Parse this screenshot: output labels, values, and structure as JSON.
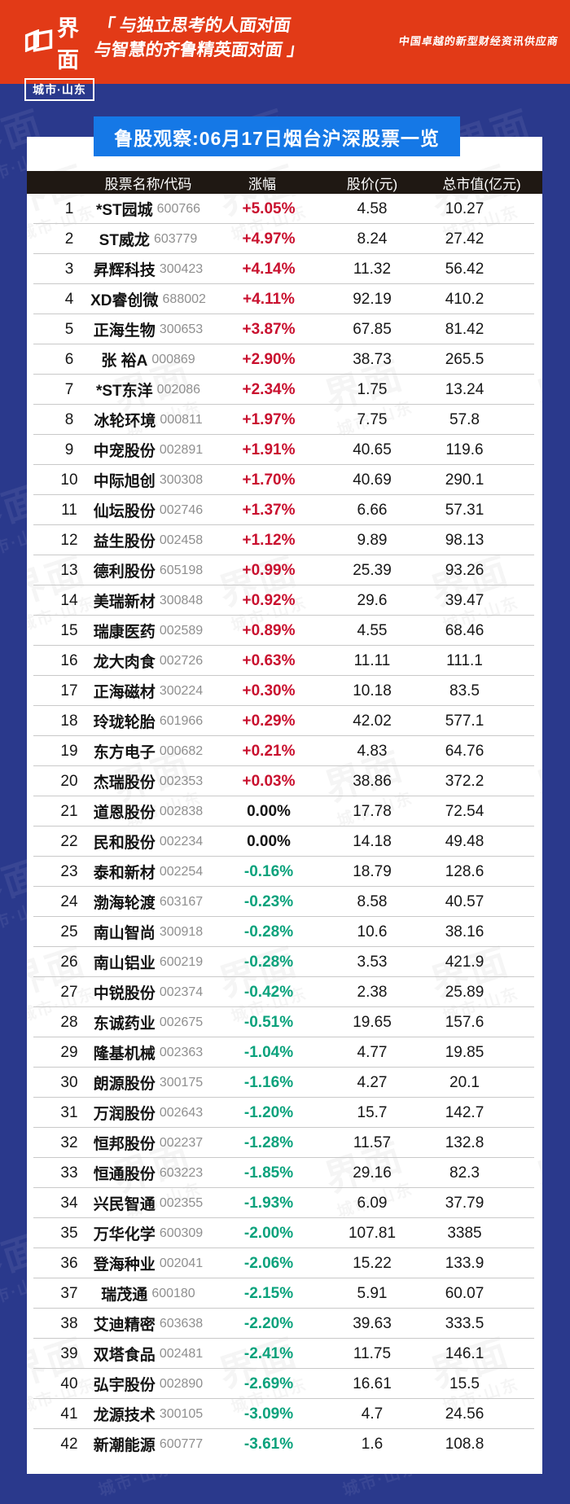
{
  "header": {
    "logo": {
      "brand": "界面",
      "sub": "城市·山东"
    },
    "tagline_line1": "「 与独立思考的人面对面",
    "tagline_line2": "与智慧的齐鲁精英面对面 」",
    "slogan": "中国卓越的新型财经资讯供应商"
  },
  "banner": {
    "title": "鲁股观察:06月17日烟台沪深股票一览"
  },
  "watermark": {
    "brand": "界面",
    "sub": "城市·山东"
  },
  "colors": {
    "masthead_bg": "#e23a17",
    "page_bg": "#2a398c",
    "banner_bg": "#1578e6",
    "table_header_bg": "#1f1813",
    "up": "#c9102e",
    "down": "#0aa27c",
    "flat": "#141414"
  },
  "chart_data": {
    "type": "table",
    "title": "鲁股观察:06月17日烟台沪深股票一览",
    "columns": [
      "股票名称/代码",
      "涨幅",
      "股价(元)",
      "总市值(亿元)"
    ],
    "rows": [
      {
        "rank": 1,
        "name": "*ST园城",
        "code": "600766",
        "change": "+5.05%",
        "price": "4.58",
        "mcap": "10.27",
        "dir": "up"
      },
      {
        "rank": 2,
        "name": "ST威龙",
        "code": "603779",
        "change": "+4.97%",
        "price": "8.24",
        "mcap": "27.42",
        "dir": "up"
      },
      {
        "rank": 3,
        "name": "昇辉科技",
        "code": "300423",
        "change": "+4.14%",
        "price": "11.32",
        "mcap": "56.42",
        "dir": "up"
      },
      {
        "rank": 4,
        "name": "XD睿创微",
        "code": "688002",
        "change": "+4.11%",
        "price": "92.19",
        "mcap": "410.2",
        "dir": "up"
      },
      {
        "rank": 5,
        "name": "正海生物",
        "code": "300653",
        "change": "+3.87%",
        "price": "67.85",
        "mcap": "81.42",
        "dir": "up"
      },
      {
        "rank": 6,
        "name": "张 裕A",
        "code": "000869",
        "change": "+2.90%",
        "price": "38.73",
        "mcap": "265.5",
        "dir": "up"
      },
      {
        "rank": 7,
        "name": "*ST东洋",
        "code": "002086",
        "change": "+2.34%",
        "price": "1.75",
        "mcap": "13.24",
        "dir": "up"
      },
      {
        "rank": 8,
        "name": "冰轮环境",
        "code": "000811",
        "change": "+1.97%",
        "price": "7.75",
        "mcap": "57.8",
        "dir": "up"
      },
      {
        "rank": 9,
        "name": "中宠股份",
        "code": "002891",
        "change": "+1.91%",
        "price": "40.65",
        "mcap": "119.6",
        "dir": "up"
      },
      {
        "rank": 10,
        "name": "中际旭创",
        "code": "300308",
        "change": "+1.70%",
        "price": "40.69",
        "mcap": "290.1",
        "dir": "up"
      },
      {
        "rank": 11,
        "name": "仙坛股份",
        "code": "002746",
        "change": "+1.37%",
        "price": "6.66",
        "mcap": "57.31",
        "dir": "up"
      },
      {
        "rank": 12,
        "name": "益生股份",
        "code": "002458",
        "change": "+1.12%",
        "price": "9.89",
        "mcap": "98.13",
        "dir": "up"
      },
      {
        "rank": 13,
        "name": "德利股份",
        "code": "605198",
        "change": "+0.99%",
        "price": "25.39",
        "mcap": "93.26",
        "dir": "up"
      },
      {
        "rank": 14,
        "name": "美瑞新材",
        "code": "300848",
        "change": "+0.92%",
        "price": "29.6",
        "mcap": "39.47",
        "dir": "up"
      },
      {
        "rank": 15,
        "name": "瑞康医药",
        "code": "002589",
        "change": "+0.89%",
        "price": "4.55",
        "mcap": "68.46",
        "dir": "up"
      },
      {
        "rank": 16,
        "name": "龙大肉食",
        "code": "002726",
        "change": "+0.63%",
        "price": "11.11",
        "mcap": "111.1",
        "dir": "up"
      },
      {
        "rank": 17,
        "name": "正海磁材",
        "code": "300224",
        "change": "+0.30%",
        "price": "10.18",
        "mcap": "83.5",
        "dir": "up"
      },
      {
        "rank": 18,
        "name": "玲珑轮胎",
        "code": "601966",
        "change": "+0.29%",
        "price": "42.02",
        "mcap": "577.1",
        "dir": "up"
      },
      {
        "rank": 19,
        "name": "东方电子",
        "code": "000682",
        "change": "+0.21%",
        "price": "4.83",
        "mcap": "64.76",
        "dir": "up"
      },
      {
        "rank": 20,
        "name": "杰瑞股份",
        "code": "002353",
        "change": "+0.03%",
        "price": "38.86",
        "mcap": "372.2",
        "dir": "up"
      },
      {
        "rank": 21,
        "name": "道恩股份",
        "code": "002838",
        "change": "0.00%",
        "price": "17.78",
        "mcap": "72.54",
        "dir": "flat"
      },
      {
        "rank": 22,
        "name": "民和股份",
        "code": "002234",
        "change": "0.00%",
        "price": "14.18",
        "mcap": "49.48",
        "dir": "flat"
      },
      {
        "rank": 23,
        "name": "泰和新材",
        "code": "002254",
        "change": "-0.16%",
        "price": "18.79",
        "mcap": "128.6",
        "dir": "down"
      },
      {
        "rank": 24,
        "name": "渤海轮渡",
        "code": "603167",
        "change": "-0.23%",
        "price": "8.58",
        "mcap": "40.57",
        "dir": "down"
      },
      {
        "rank": 25,
        "name": "南山智尚",
        "code": "300918",
        "change": "-0.28%",
        "price": "10.6",
        "mcap": "38.16",
        "dir": "down"
      },
      {
        "rank": 26,
        "name": "南山铝业",
        "code": "600219",
        "change": "-0.28%",
        "price": "3.53",
        "mcap": "421.9",
        "dir": "down"
      },
      {
        "rank": 27,
        "name": "中锐股份",
        "code": "002374",
        "change": "-0.42%",
        "price": "2.38",
        "mcap": "25.89",
        "dir": "down"
      },
      {
        "rank": 28,
        "name": "东诚药业",
        "code": "002675",
        "change": "-0.51%",
        "price": "19.65",
        "mcap": "157.6",
        "dir": "down"
      },
      {
        "rank": 29,
        "name": "隆基机械",
        "code": "002363",
        "change": "-1.04%",
        "price": "4.77",
        "mcap": "19.85",
        "dir": "down"
      },
      {
        "rank": 30,
        "name": "朗源股份",
        "code": "300175",
        "change": "-1.16%",
        "price": "4.27",
        "mcap": "20.1",
        "dir": "down"
      },
      {
        "rank": 31,
        "name": "万润股份",
        "code": "002643",
        "change": "-1.20%",
        "price": "15.7",
        "mcap": "142.7",
        "dir": "down"
      },
      {
        "rank": 32,
        "name": "恒邦股份",
        "code": "002237",
        "change": "-1.28%",
        "price": "11.57",
        "mcap": "132.8",
        "dir": "down"
      },
      {
        "rank": 33,
        "name": "恒通股份",
        "code": "603223",
        "change": "-1.85%",
        "price": "29.16",
        "mcap": "82.3",
        "dir": "down"
      },
      {
        "rank": 34,
        "name": "兴民智通",
        "code": "002355",
        "change": "-1.93%",
        "price": "6.09",
        "mcap": "37.79",
        "dir": "down"
      },
      {
        "rank": 35,
        "name": "万华化学",
        "code": "600309",
        "change": "-2.00%",
        "price": "107.81",
        "mcap": "3385",
        "dir": "down"
      },
      {
        "rank": 36,
        "name": "登海种业",
        "code": "002041",
        "change": "-2.06%",
        "price": "15.22",
        "mcap": "133.9",
        "dir": "down"
      },
      {
        "rank": 37,
        "name": "瑞茂通",
        "code": "600180",
        "change": "-2.15%",
        "price": "5.91",
        "mcap": "60.07",
        "dir": "down"
      },
      {
        "rank": 38,
        "name": "艾迪精密",
        "code": "603638",
        "change": "-2.20%",
        "price": "39.63",
        "mcap": "333.5",
        "dir": "down"
      },
      {
        "rank": 39,
        "name": "双塔食品",
        "code": "002481",
        "change": "-2.41%",
        "price": "11.75",
        "mcap": "146.1",
        "dir": "down"
      },
      {
        "rank": 40,
        "name": "弘宇股份",
        "code": "002890",
        "change": "-2.69%",
        "price": "16.61",
        "mcap": "15.5",
        "dir": "down"
      },
      {
        "rank": 41,
        "name": "龙源技术",
        "code": "300105",
        "change": "-3.09%",
        "price": "4.7",
        "mcap": "24.56",
        "dir": "down"
      },
      {
        "rank": 42,
        "name": "新潮能源",
        "code": "600777",
        "change": "-3.61%",
        "price": "1.6",
        "mcap": "108.8",
        "dir": "down"
      }
    ]
  }
}
